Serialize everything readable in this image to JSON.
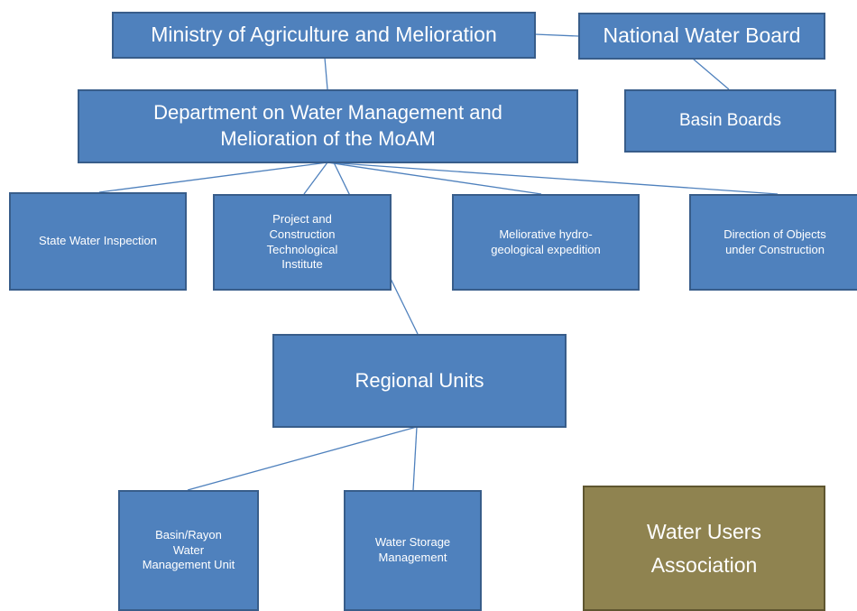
{
  "nodes": [
    {
      "label": "Ministry of Agriculture and Melioration"
    },
    {
      "label": "National Water Board"
    },
    {
      "label": "Department on Water Management and Melioration of the MoAM"
    },
    {
      "label": "Basin Boards"
    },
    {
      "label": "State Water Inspection"
    },
    {
      "label": "Project and Construction Technological Institute"
    },
    {
      "label": "Meliorative hydro-geological expedition"
    },
    {
      "label": "Direction of Objects under Construction"
    },
    {
      "label": "Regional Units"
    },
    {
      "label": "Basin/Rayon Water Management Unit"
    },
    {
      "label": "Water Storage Management"
    },
    {
      "label": "Water Users Association"
    }
  ]
}
